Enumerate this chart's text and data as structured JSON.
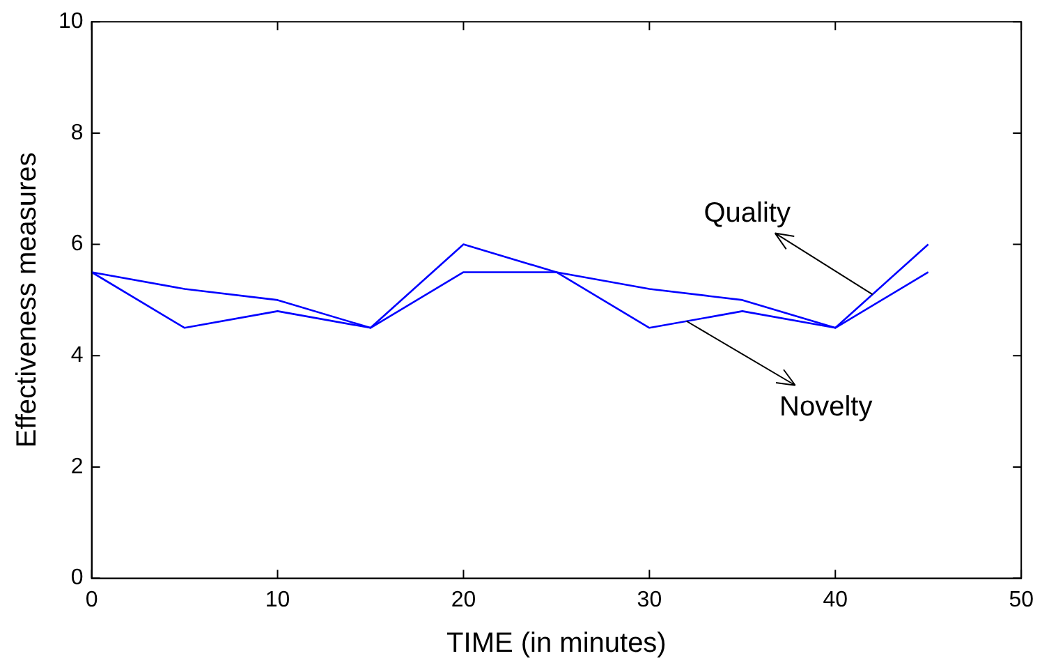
{
  "chart_data": {
    "type": "line",
    "x": [
      0,
      5,
      10,
      15,
      20,
      25,
      30,
      35,
      40,
      45
    ],
    "series": [
      {
        "name": "Quality",
        "color": "#0000ff",
        "values": [
          5.5,
          5.2,
          5.0,
          4.5,
          5.5,
          5.5,
          5.2,
          5.0,
          4.5,
          6.0
        ]
      },
      {
        "name": "Novelty",
        "color": "#0000ff",
        "values": [
          5.5,
          4.5,
          4.8,
          4.5,
          6.0,
          5.5,
          4.5,
          4.8,
          4.5,
          5.5
        ]
      }
    ],
    "xlabel": "TIME (in minutes)",
    "ylabel": "Effectiveness measures",
    "xlim": [
      0,
      50
    ],
    "xticks": [
      0,
      10,
      20,
      30,
      40,
      50
    ],
    "ylim": [
      0,
      10
    ],
    "yticks": [
      0,
      2,
      4,
      6,
      8,
      10
    ],
    "grid": false,
    "legend": false,
    "marker": "none",
    "line_style": "solid"
  }
}
